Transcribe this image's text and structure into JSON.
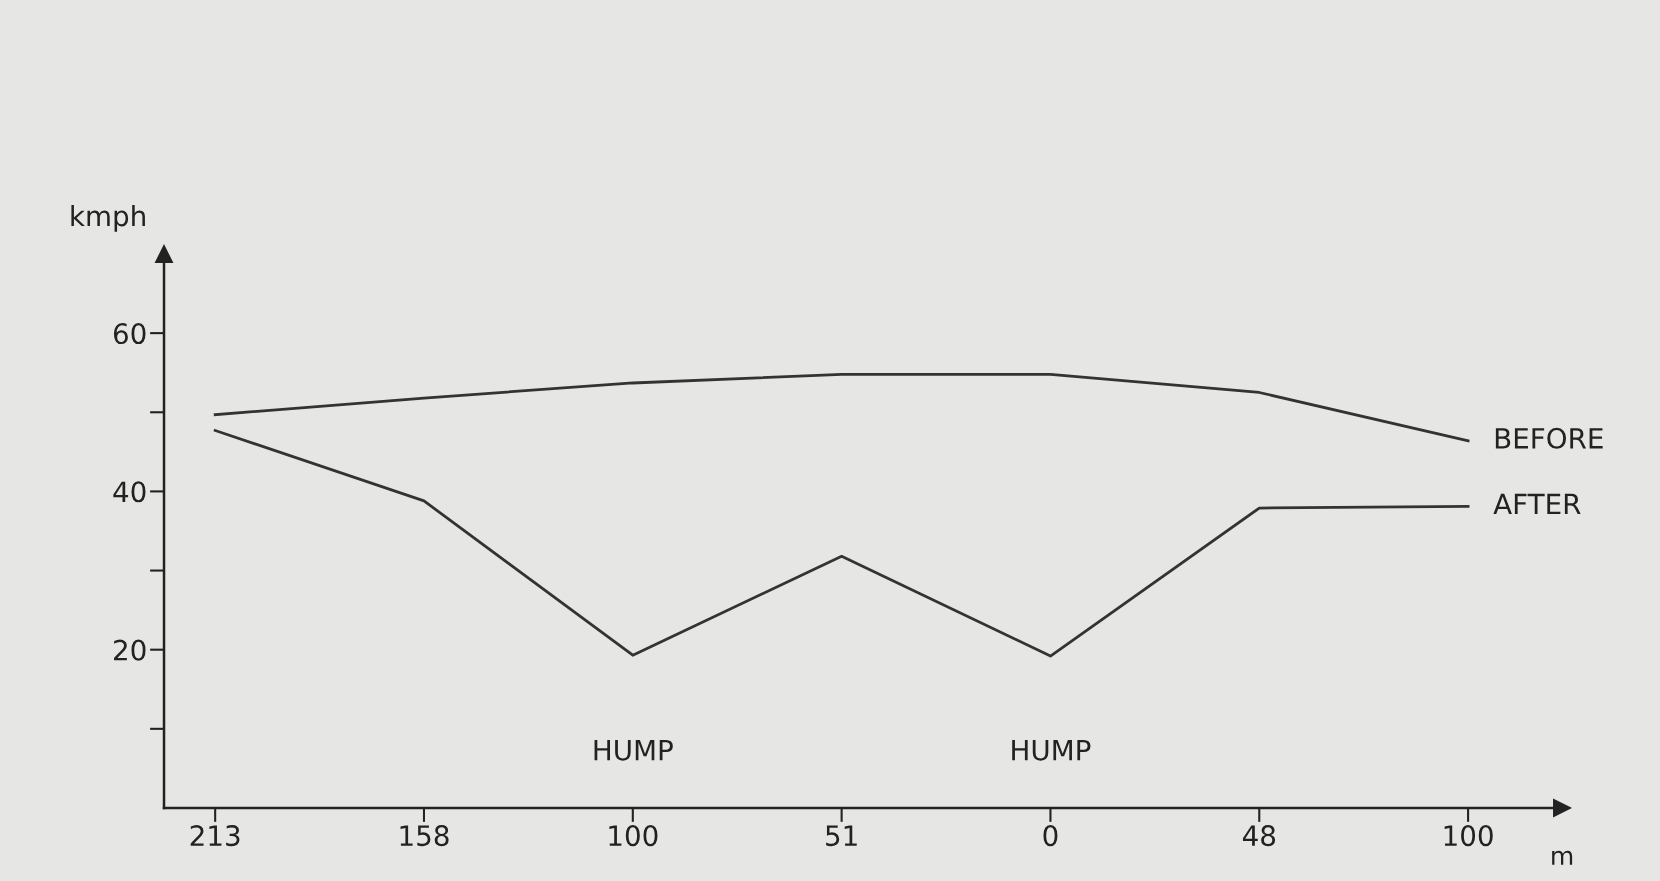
{
  "chart_data": {
    "type": "line",
    "xlabel": "m",
    "ylabel": "kmph",
    "categories": [
      "213",
      "158",
      "100",
      "51",
      "0",
      "48",
      "100"
    ],
    "series": [
      {
        "name": "BEFORE",
        "color": "#333333",
        "values": [
          49.7,
          51.8,
          53.7,
          54.8,
          54.8,
          52.5,
          46.4
        ]
      },
      {
        "name": "AFTER",
        "color": "#333333",
        "values": [
          47.7,
          38.8,
          19.3,
          31.8,
          19.2,
          37.9,
          38.1
        ]
      }
    ],
    "ylim": [
      0,
      70
    ],
    "yticks": [
      {
        "value": 10,
        "label": null
      },
      20,
      {
        "value": 30,
        "label": null
      },
      40,
      {
        "value": 50,
        "label": null
      },
      60
    ],
    "annotations": [
      "HUMP",
      "HUMP"
    ],
    "grid": false,
    "legend": false,
    "marker": "none",
    "line_style": "solid"
  }
}
